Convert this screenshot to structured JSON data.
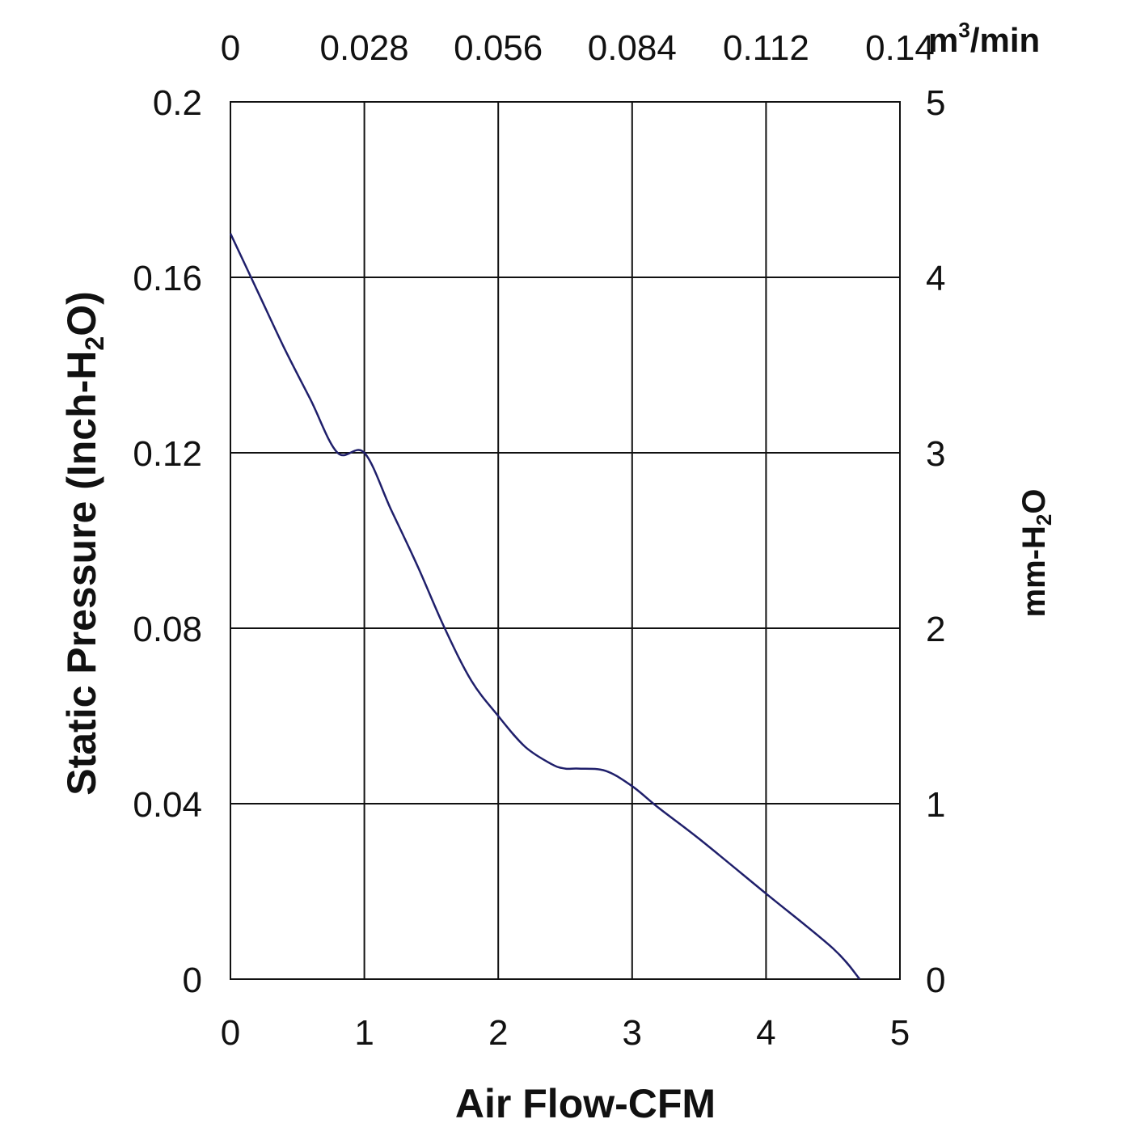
{
  "chart_data": {
    "type": "line",
    "title": "",
    "xlabel": "Air Flow-CFM",
    "ylabel": "Static Pressure (Inch-H₂O)",
    "ylabel_parts": [
      "Static Pressure (Inch-H",
      "2",
      "O)"
    ],
    "y2label_parts": [
      "mm-H",
      "2",
      "O"
    ],
    "x2label_parts": [
      "m",
      "3",
      "/min"
    ],
    "xlim": [
      0,
      5
    ],
    "ylim": [
      0,
      0.2
    ],
    "x_ticks": [
      "0",
      "1",
      "2",
      "3",
      "4",
      "5"
    ],
    "y_ticks": [
      "0",
      "0.04",
      "0.08",
      "0.12",
      "0.16",
      "0.2"
    ],
    "y2_ticks": [
      "0",
      "1",
      "2",
      "3",
      "4",
      "5"
    ],
    "x2_ticks": [
      "0",
      "0.028",
      "0.056",
      "0.084",
      "0.112",
      "0.14"
    ],
    "grid": true,
    "line_color": "#1f1f6b",
    "series": [
      {
        "x": [
          0,
          0.2,
          0.4,
          0.6,
          0.8,
          1.0,
          1.2,
          1.4,
          1.6,
          1.8,
          2.0,
          2.2,
          2.4,
          2.5,
          2.6,
          2.8,
          3.0,
          3.2,
          3.5,
          4.0,
          4.5,
          4.7
        ],
        "y": [
          0.17,
          0.157,
          0.144,
          0.132,
          0.12,
          0.12,
          0.107,
          0.094,
          0.08,
          0.068,
          0.06,
          0.053,
          0.049,
          0.048,
          0.048,
          0.0475,
          0.044,
          0.039,
          0.032,
          0.0195,
          0.007,
          0.0
        ]
      }
    ]
  }
}
